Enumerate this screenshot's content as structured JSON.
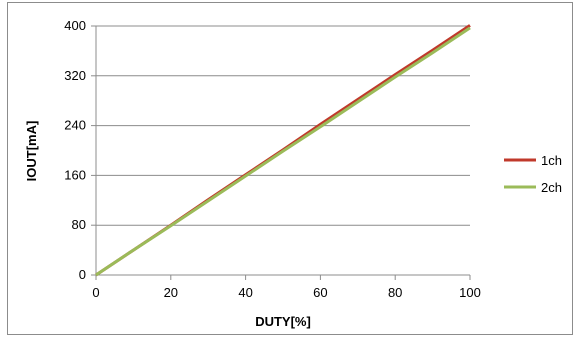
{
  "chart_data": {
    "type": "line",
    "title": "",
    "xlabel": "DUTY[%]",
    "ylabel": "IOUT[mA]",
    "xlim": [
      0,
      100
    ],
    "ylim": [
      0,
      400
    ],
    "xticks": [
      0,
      20,
      40,
      60,
      80,
      100
    ],
    "yticks": [
      0,
      80,
      160,
      240,
      320,
      400
    ],
    "grid": "horizontal",
    "legend": "right",
    "series": [
      {
        "name": "1ch",
        "color": "#c0392b",
        "x": [
          0,
          10,
          20,
          30,
          40,
          50,
          60,
          70,
          80,
          90,
          100
        ],
        "y": [
          0,
          40,
          80,
          121,
          161,
          201,
          242,
          282,
          322,
          361,
          401
        ]
      },
      {
        "name": "2ch",
        "color": "#9bbb59",
        "x": [
          0,
          10,
          20,
          30,
          40,
          50,
          60,
          70,
          80,
          90,
          100
        ],
        "y": [
          0,
          40,
          79,
          119,
          159,
          199,
          238,
          278,
          318,
          357,
          397
        ]
      }
    ]
  }
}
